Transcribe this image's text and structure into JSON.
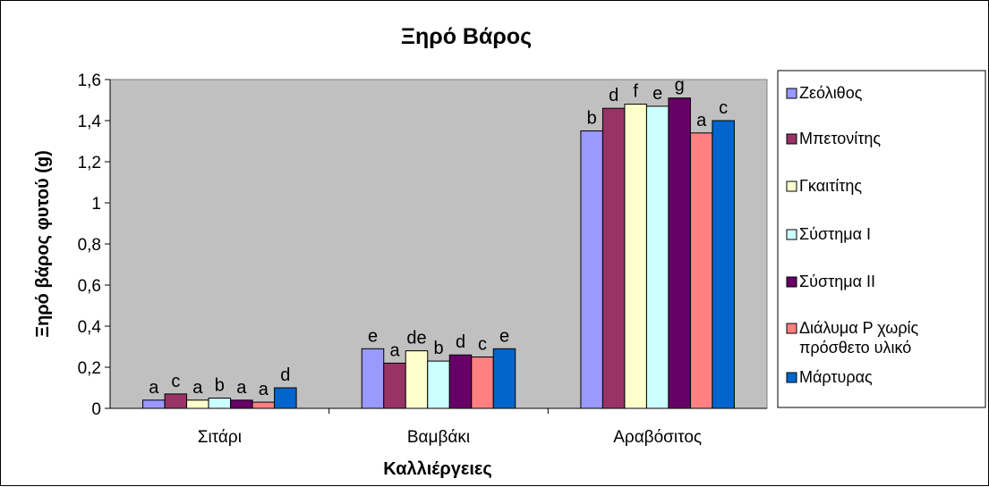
{
  "chart_data": {
    "type": "bar",
    "title": "Ξηρό Βάρος",
    "xlabel": "Καλλιέργειες",
    "ylabel": "Ξηρό βάρος φυτού (g)",
    "ylim": [
      0,
      1.6
    ],
    "yticks": [
      "0",
      "0,2",
      "0,4",
      "0,6",
      "0,8",
      "1",
      "1,2",
      "1,4",
      "1,6"
    ],
    "categories": [
      "Σιτάρι",
      "Βαμβάκι",
      "Αραβόσιτος"
    ],
    "series": [
      {
        "name": "Ζεόλιθος",
        "color": "#9999ff",
        "values": [
          0.04,
          0.29,
          1.35
        ],
        "letters": [
          "a",
          "e",
          "b"
        ]
      },
      {
        "name": "Μπετονίτης",
        "color": "#993366",
        "values": [
          0.07,
          0.22,
          1.46
        ],
        "letters": [
          "c",
          "a",
          "d"
        ]
      },
      {
        "name": "Γκαιτίτης",
        "color": "#ffffcc",
        "values": [
          0.04,
          0.28,
          1.48
        ],
        "letters": [
          "a",
          "de",
          "f"
        ]
      },
      {
        "name": "Σύστημα Ι",
        "color": "#ccffff",
        "values": [
          0.05,
          0.23,
          1.47
        ],
        "letters": [
          "b",
          "b",
          "e"
        ]
      },
      {
        "name": "Σύστημα ΙΙ",
        "color": "#660066",
        "values": [
          0.04,
          0.26,
          1.51
        ],
        "letters": [
          "a",
          "d",
          "g"
        ]
      },
      {
        "name": "Διάλυμα P χωρίς πρόσθετο υλικό",
        "color": "#ff8080",
        "values": [
          0.03,
          0.25,
          1.34
        ],
        "letters": [
          "a",
          "c",
          "a"
        ]
      },
      {
        "name": "Μάρτυρας",
        "color": "#0066cc",
        "values": [
          0.1,
          0.29,
          1.4
        ],
        "letters": [
          "d",
          "e",
          "c"
        ]
      }
    ],
    "legend": "right",
    "grid": false,
    "plot_background": "#c0c0c0"
  }
}
